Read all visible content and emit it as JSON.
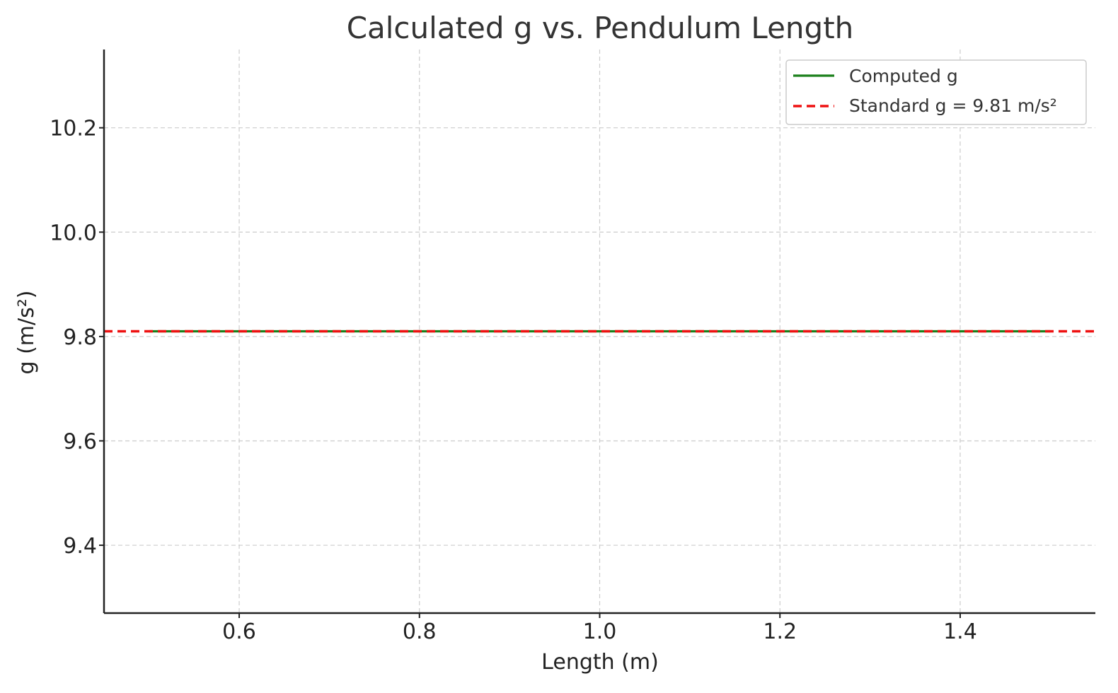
{
  "chart_data": {
    "type": "line",
    "title": "Calculated g vs. Pendulum Length",
    "xlabel": "Length (m)",
    "ylabel": "g (m/s²)",
    "xlim": [
      0.45,
      1.55
    ],
    "ylim": [
      9.27,
      10.35
    ],
    "xticks": [
      0.6,
      0.8,
      1.0,
      1.2,
      1.4
    ],
    "xtick_labels": [
      "0.6",
      "0.8",
      "1.0",
      "1.2",
      "1.4"
    ],
    "yticks": [
      9.4,
      9.6,
      9.8,
      10.0,
      10.2
    ],
    "ytick_labels": [
      "9.4",
      "9.6",
      "9.8",
      "10.0",
      "10.2"
    ],
    "grid": true,
    "legend_position": "top-right",
    "series": [
      {
        "name": "Computed g",
        "color": "#1a7f1a",
        "style": "solid",
        "x": [
          0.5,
          0.6,
          0.7,
          0.8,
          0.9,
          1.0,
          1.1,
          1.2,
          1.3,
          1.4,
          1.5
        ],
        "y": [
          9.81,
          9.81,
          9.81,
          9.81,
          9.81,
          9.81,
          9.81,
          9.81,
          9.81,
          9.81,
          9.81
        ]
      },
      {
        "name": "Standard g = 9.81 m/s²",
        "color": "#ee1111",
        "style": "dashed",
        "hline": 9.81
      }
    ]
  }
}
